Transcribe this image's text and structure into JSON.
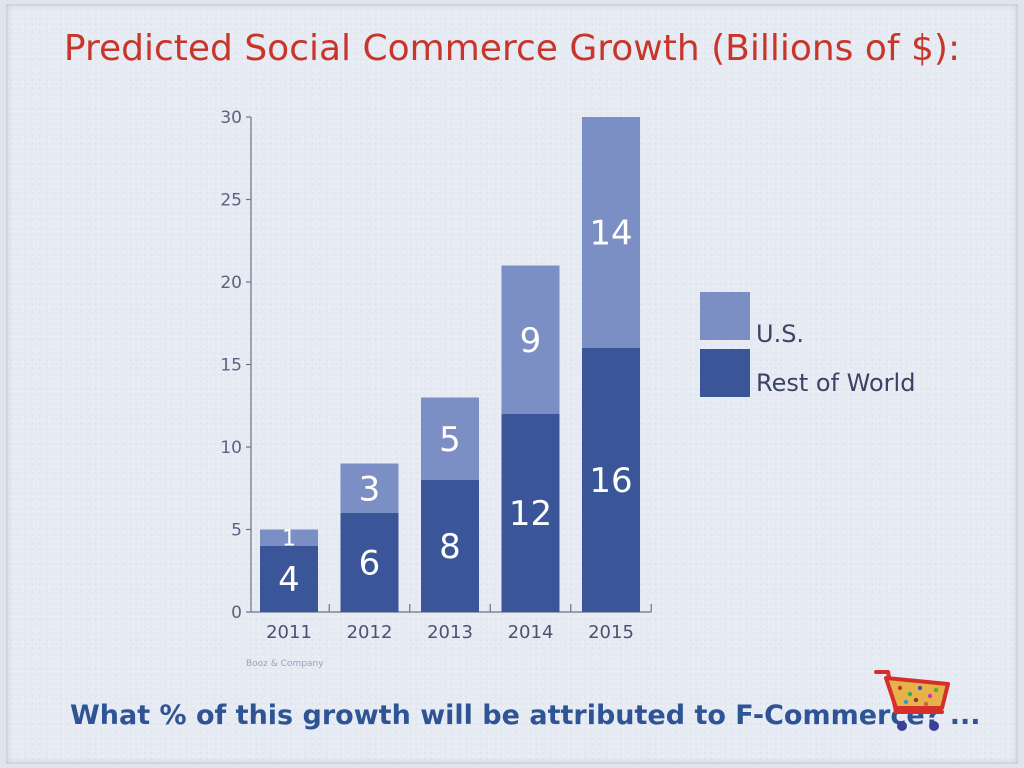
{
  "title": "Predicted Social Commerce Growth (Billions of $):",
  "question": "What % of this growth will be attributed to F-Commerce? ...",
  "source": "Booz & Company",
  "cart_icon": "shopping-cart-icon",
  "colors": {
    "us": "#7b8fc4",
    "rest_of_world": "#3a5699",
    "title": "#c8352a",
    "question": "#2f5496",
    "axis": "#6a7490"
  },
  "chart_data": {
    "type": "bar",
    "stacked": true,
    "title": "Predicted Social Commerce Growth (Billions of $):",
    "categories": [
      "2011",
      "2012",
      "2013",
      "2014",
      "2015"
    ],
    "series": [
      {
        "name": "Rest of World",
        "values": [
          4,
          6,
          8,
          12,
          16
        ]
      },
      {
        "name": "U.S.",
        "values": [
          1,
          3,
          5,
          9,
          14
        ]
      }
    ],
    "ylim": [
      0,
      30
    ],
    "yticks": [
      "0",
      "5",
      "10",
      "15",
      "20",
      "25",
      "30"
    ],
    "xlabel": "",
    "ylabel": "",
    "legend": [
      "U.S.",
      "Rest of World"
    ],
    "legend_position": "right",
    "grid": false
  }
}
